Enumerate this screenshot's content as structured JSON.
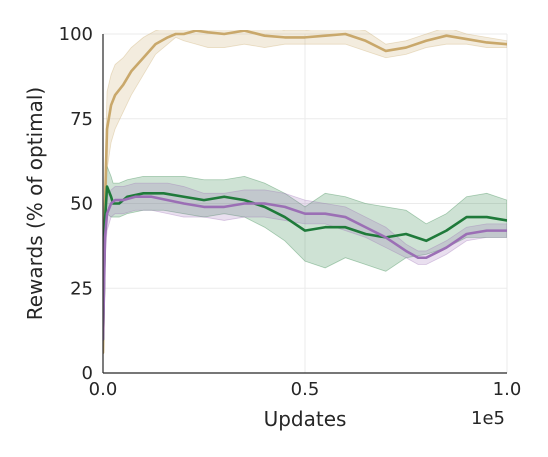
{
  "chart_data": {
    "type": "line",
    "xlabel": "Updates",
    "ylabel": "Rewards (% of optimal)",
    "x_offset_text": "1e5",
    "xlim": [
      0,
      1.0
    ],
    "ylim": [
      0,
      100
    ],
    "xticks": [
      0.0,
      0.5,
      1.0
    ],
    "xtick_labels": [
      "0.0",
      "0.5",
      "1.0"
    ],
    "yticks": [
      0,
      25,
      50,
      75,
      100
    ],
    "ytick_labels": [
      "0",
      "25",
      "50",
      "75",
      "100"
    ],
    "grid": true,
    "legend": false,
    "series": [
      {
        "color": "#c9a86b",
        "x": [
          0,
          0.005,
          0.01,
          0.02,
          0.03,
          0.05,
          0.07,
          0.1,
          0.13,
          0.16,
          0.18,
          0.2,
          0.23,
          0.26,
          0.3,
          0.35,
          0.4,
          0.45,
          0.5,
          0.55,
          0.6,
          0.65,
          0.7,
          0.75,
          0.8,
          0.85,
          0.9,
          0.95,
          1.0
        ],
        "y": [
          6,
          50,
          72,
          79,
          82,
          85,
          89,
          93,
          97,
          99,
          100,
          100,
          101,
          100.5,
          100,
          101,
          99.5,
          99,
          99,
          99.5,
          100,
          98,
          95,
          96,
          98,
          99.5,
          98.5,
          97.5,
          97
        ],
        "lower": [
          4,
          38,
          60,
          68,
          72,
          77,
          82,
          88,
          94,
          97,
          99,
          98,
          97,
          96,
          96,
          97,
          96,
          97,
          97,
          97,
          97,
          95,
          93,
          94,
          96,
          97,
          97,
          96,
          96
        ],
        "upper": [
          10,
          60,
          83,
          88,
          91,
          93,
          96,
          99,
          101,
          102,
          102,
          103,
          104,
          104,
          103,
          104,
          103,
          101,
          101,
          102,
          102,
          101,
          97,
          98,
          100,
          102,
          100,
          99,
          98
        ]
      },
      {
        "color": "#1f7a3a",
        "x": [
          0,
          0.005,
          0.01,
          0.02,
          0.025,
          0.04,
          0.06,
          0.1,
          0.15,
          0.2,
          0.25,
          0.3,
          0.35,
          0.4,
          0.45,
          0.5,
          0.55,
          0.6,
          0.65,
          0.7,
          0.75,
          0.8,
          0.85,
          0.9,
          0.95,
          1.0
        ],
        "y": [
          10,
          45,
          55,
          52,
          50,
          50,
          52,
          53,
          53,
          52,
          51,
          52,
          51,
          49,
          46,
          42,
          43,
          43,
          41,
          40,
          41,
          39,
          42,
          46,
          46,
          45
        ],
        "lower": [
          6,
          38,
          47,
          46,
          46,
          46,
          47,
          48,
          48,
          47,
          46,
          47,
          46,
          43,
          39,
          33,
          31,
          34,
          32,
          30,
          34,
          35,
          37,
          40,
          40,
          40
        ],
        "upper": [
          14,
          52,
          61,
          58,
          56,
          56,
          57,
          58,
          58,
          58,
          57,
          57,
          58,
          56,
          53,
          49,
          53,
          52,
          50,
          49,
          48,
          44,
          47,
          52,
          53,
          51
        ]
      },
      {
        "color": "#9b6fb5",
        "x": [
          0,
          0.005,
          0.01,
          0.02,
          0.03,
          0.05,
          0.08,
          0.12,
          0.16,
          0.2,
          0.25,
          0.3,
          0.35,
          0.4,
          0.45,
          0.5,
          0.55,
          0.6,
          0.65,
          0.7,
          0.75,
          0.78,
          0.8,
          0.85,
          0.9,
          0.95,
          1.0
        ],
        "y": [
          10,
          40,
          47,
          50,
          51,
          51,
          52,
          52,
          51,
          50,
          49,
          49,
          50,
          50,
          49,
          47,
          47,
          46,
          43,
          40,
          36,
          34,
          34,
          37,
          41,
          42,
          42
        ],
        "lower": [
          6,
          34,
          42,
          46,
          47,
          47,
          48,
          48,
          47,
          46,
          46,
          45,
          46,
          46,
          45,
          44,
          44,
          42,
          40,
          37,
          34,
          32,
          32,
          35,
          39,
          40,
          40
        ],
        "upper": [
          14,
          46,
          52,
          54,
          55,
          55,
          56,
          56,
          56,
          55,
          53,
          53,
          54,
          54,
          53,
          51,
          50,
          49,
          46,
          43,
          38,
          36,
          36,
          39,
          43,
          44,
          44
        ]
      }
    ]
  }
}
